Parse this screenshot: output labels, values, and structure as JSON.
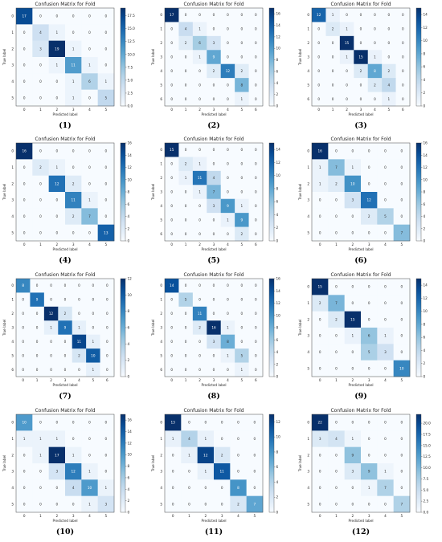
{
  "colors": {
    "low": "#f7fbff",
    "high": "#08306b"
  },
  "chart_data": [
    {
      "type": "heatmap",
      "caption": "(1)",
      "title": "Confusion Matrix for Fold",
      "xlabel": "Predicted label",
      "ylabel": "True label",
      "labels": [
        "0",
        "1",
        "2",
        "3",
        "4",
        "5"
      ],
      "matrix": [
        [
          17,
          0,
          0,
          0,
          0,
          0
        ],
        [
          0,
          4,
          1,
          0,
          0,
          0
        ],
        [
          0,
          3,
          19,
          1,
          0,
          0
        ],
        [
          0,
          0,
          1,
          11,
          1,
          0
        ],
        [
          0,
          0,
          0,
          1,
          6,
          1
        ],
        [
          0,
          0,
          0,
          1,
          0,
          5
        ]
      ],
      "colorbar_ticks": [
        "0.0",
        "2.5",
        "5.0",
        "7.5",
        "10.0",
        "12.5",
        "15.0",
        "17.5"
      ],
      "vmax": 19
    },
    {
      "type": "heatmap",
      "caption": "(2)",
      "title": "Confusion Matrix for Fold",
      "xlabel": "Predicted label",
      "ylabel": "True label",
      "labels": [
        "0",
        "1",
        "2",
        "3",
        "4",
        "5",
        "6"
      ],
      "matrix": [
        [
          17,
          0,
          0,
          0,
          0,
          0,
          0
        ],
        [
          0,
          4,
          1,
          0,
          0,
          0,
          0
        ],
        [
          0,
          2,
          6,
          3,
          0,
          0,
          0
        ],
        [
          0,
          0,
          1,
          9,
          0,
          0,
          0
        ],
        [
          0,
          0,
          0,
          2,
          12,
          2,
          0
        ],
        [
          0,
          0,
          0,
          0,
          0,
          8,
          0
        ],
        [
          0,
          0,
          0,
          0,
          0,
          1,
          0
        ]
      ],
      "colorbar_ticks": [
        "0",
        "2",
        "4",
        "6",
        "8",
        "10",
        "12",
        "14",
        "16"
      ],
      "vmax": 17
    },
    {
      "type": "heatmap",
      "caption": "(3)",
      "title": "Confusion Matrix for Fold",
      "xlabel": "Predicted label",
      "ylabel": "True label",
      "labels": [
        "0",
        "1",
        "2",
        "3",
        "4",
        "5",
        "6"
      ],
      "matrix": [
        [
          12,
          1,
          0,
          0,
          0,
          0,
          0
        ],
        [
          0,
          2,
          1,
          0,
          0,
          0,
          0
        ],
        [
          0,
          0,
          15,
          0,
          0,
          0,
          0
        ],
        [
          0,
          0,
          1,
          15,
          1,
          0,
          0
        ],
        [
          0,
          0,
          0,
          2,
          8,
          2,
          0
        ],
        [
          0,
          0,
          0,
          0,
          2,
          4,
          0
        ],
        [
          0,
          0,
          0,
          0,
          0,
          1,
          0
        ]
      ],
      "colorbar_ticks": [
        "0",
        "2",
        "4",
        "6",
        "8",
        "10",
        "12",
        "14"
      ],
      "vmax": 15
    },
    {
      "type": "heatmap",
      "caption": "(4)",
      "title": "Confusion Matrix for Fold",
      "xlabel": "Predicted label",
      "ylabel": "True label",
      "labels": [
        "0",
        "1",
        "2",
        "3",
        "4",
        "5"
      ],
      "matrix": [
        [
          16,
          0,
          0,
          0,
          0,
          0
        ],
        [
          0,
          2,
          1,
          0,
          0,
          0
        ],
        [
          0,
          0,
          12,
          2,
          0,
          0
        ],
        [
          0,
          0,
          0,
          11,
          1,
          0
        ],
        [
          0,
          0,
          0,
          2,
          7,
          0
        ],
        [
          0,
          0,
          0,
          0,
          0,
          13
        ]
      ],
      "colorbar_ticks": [
        "0",
        "2",
        "4",
        "6",
        "8",
        "10",
        "12",
        "14",
        "16"
      ],
      "vmax": 16
    },
    {
      "type": "heatmap",
      "caption": "(5)",
      "title": "Confusion Matrix for Fold",
      "xlabel": "Predicted label",
      "ylabel": "True label",
      "labels": [
        "0",
        "1",
        "2",
        "3",
        "4",
        "5",
        "6"
      ],
      "matrix": [
        [
          15,
          0,
          0,
          0,
          0,
          0,
          0
        ],
        [
          0,
          2,
          1,
          0,
          0,
          0,
          0
        ],
        [
          0,
          1,
          11,
          4,
          0,
          0,
          0
        ],
        [
          0,
          0,
          1,
          7,
          0,
          0,
          0
        ],
        [
          0,
          0,
          0,
          3,
          9,
          1,
          0
        ],
        [
          0,
          0,
          0,
          0,
          1,
          9,
          0
        ],
        [
          0,
          0,
          0,
          0,
          0,
          2,
          0
        ]
      ],
      "colorbar_ticks": [
        "0",
        "2",
        "4",
        "6",
        "8",
        "10",
        "12",
        "14"
      ],
      "vmax": 15
    },
    {
      "type": "heatmap",
      "caption": "(6)",
      "title": "Confusion Matrix for Fold",
      "xlabel": "Predicted label",
      "ylabel": "True label",
      "labels": [
        "0",
        "1",
        "2",
        "3",
        "4",
        "5"
      ],
      "matrix": [
        [
          16,
          0,
          0,
          0,
          0,
          0
        ],
        [
          1,
          7,
          1,
          0,
          0,
          0
        ],
        [
          1,
          2,
          10,
          0,
          0,
          0
        ],
        [
          0,
          0,
          3,
          12,
          0,
          0
        ],
        [
          0,
          0,
          0,
          2,
          5,
          0
        ],
        [
          0,
          0,
          0,
          0,
          0,
          7
        ]
      ],
      "colorbar_ticks": [
        "0",
        "2",
        "4",
        "6",
        "8",
        "10",
        "12",
        "14",
        "16"
      ],
      "vmax": 16
    },
    {
      "type": "heatmap",
      "caption": "(7)",
      "title": "Confusion Matrix for Fold",
      "xlabel": "Predicted label",
      "ylabel": "True label",
      "labels": [
        "0",
        "1",
        "2",
        "3",
        "4",
        "5",
        "6"
      ],
      "matrix": [
        [
          8,
          0,
          0,
          0,
          0,
          0,
          0
        ],
        [
          0,
          9,
          0,
          0,
          0,
          0,
          0
        ],
        [
          0,
          0,
          12,
          2,
          0,
          0,
          0
        ],
        [
          0,
          0,
          1,
          9,
          1,
          0,
          0
        ],
        [
          0,
          0,
          0,
          0,
          11,
          1,
          0
        ],
        [
          0,
          0,
          0,
          0,
          2,
          10,
          0
        ],
        [
          0,
          0,
          0,
          0,
          0,
          1,
          0
        ]
      ],
      "colorbar_ticks": [
        "0",
        "2",
        "4",
        "6",
        "8",
        "10",
        "12"
      ],
      "vmax": 12
    },
    {
      "type": "heatmap",
      "caption": "(8)",
      "title": "Confusion Matrix for Fold",
      "xlabel": "Predicted label",
      "ylabel": "True label",
      "labels": [
        "0",
        "1",
        "2",
        "3",
        "4",
        "5",
        "6"
      ],
      "matrix": [
        [
          14,
          0,
          0,
          0,
          0,
          0,
          0
        ],
        [
          0,
          5,
          0,
          0,
          0,
          0,
          0
        ],
        [
          0,
          0,
          11,
          0,
          0,
          0,
          0
        ],
        [
          0,
          0,
          2,
          16,
          1,
          0,
          0
        ],
        [
          0,
          0,
          0,
          3,
          8,
          0,
          0
        ],
        [
          0,
          0,
          0,
          0,
          1,
          5,
          0
        ],
        [
          0,
          0,
          0,
          0,
          0,
          1,
          0
        ]
      ],
      "colorbar_ticks": [
        "0",
        "2",
        "4",
        "6",
        "8",
        "10",
        "12",
        "14",
        "16"
      ],
      "vmax": 16
    },
    {
      "type": "heatmap",
      "caption": "(9)",
      "title": "Confusion Matrix for Fold",
      "xlabel": "Predicted label",
      "ylabel": "True label",
      "labels": [
        "0",
        "1",
        "2",
        "3",
        "4",
        "5"
      ],
      "matrix": [
        [
          15,
          0,
          0,
          0,
          0,
          0
        ],
        [
          2,
          7,
          0,
          0,
          0,
          0
        ],
        [
          0,
          2,
          15,
          0,
          0,
          0
        ],
        [
          0,
          0,
          1,
          6,
          1,
          0
        ],
        [
          0,
          0,
          0,
          5,
          3,
          0
        ],
        [
          0,
          0,
          0,
          0,
          0,
          10
        ]
      ],
      "colorbar_ticks": [
        "0",
        "2",
        "4",
        "6",
        "8",
        "10",
        "12",
        "14"
      ],
      "vmax": 15
    },
    {
      "type": "heatmap",
      "caption": "(10)",
      "title": "Confusion Matrix for Fold",
      "xlabel": "Predicted label",
      "ylabel": "True label",
      "labels": [
        "0",
        "1",
        "2",
        "3",
        "4",
        "5"
      ],
      "matrix": [
        [
          10,
          0,
          0,
          0,
          0,
          0
        ],
        [
          1,
          1,
          1,
          0,
          0,
          0
        ],
        [
          0,
          1,
          17,
          1,
          0,
          0
        ],
        [
          0,
          0,
          3,
          12,
          1,
          0
        ],
        [
          0,
          0,
          0,
          4,
          10,
          1
        ],
        [
          0,
          0,
          0,
          0,
          1,
          3
        ]
      ],
      "colorbar_ticks": [
        "0",
        "2",
        "4",
        "6",
        "8",
        "10",
        "12",
        "14",
        "16"
      ],
      "vmax": 17
    },
    {
      "type": "heatmap",
      "caption": "(11)",
      "title": "Confusion Matrix for Fold",
      "xlabel": "Predicted label",
      "ylabel": "True label",
      "labels": [
        "0",
        "1",
        "2",
        "3",
        "4",
        "5"
      ],
      "matrix": [
        [
          13,
          0,
          0,
          0,
          0,
          0
        ],
        [
          1,
          4,
          1,
          0,
          0,
          0
        ],
        [
          0,
          1,
          12,
          2,
          0,
          0
        ],
        [
          0,
          0,
          1,
          11,
          0,
          0
        ],
        [
          0,
          0,
          0,
          0,
          8,
          0
        ],
        [
          0,
          0,
          0,
          0,
          2,
          7
        ]
      ],
      "colorbar_ticks": [
        "0",
        "2",
        "4",
        "6",
        "8",
        "10",
        "12"
      ],
      "vmax": 13
    },
    {
      "type": "heatmap",
      "caption": "(12)",
      "title": "Confusion Matrix for Fold",
      "xlabel": "Predicted label",
      "ylabel": "True label",
      "labels": [
        "0",
        "1",
        "2",
        "3",
        "4",
        "5"
      ],
      "matrix": [
        [
          22,
          0,
          0,
          0,
          0,
          0
        ],
        [
          3,
          4,
          1,
          0,
          0,
          0
        ],
        [
          0,
          0,
          9,
          0,
          0,
          0
        ],
        [
          0,
          0,
          3,
          9,
          1,
          0
        ],
        [
          0,
          0,
          0,
          1,
          7,
          0
        ],
        [
          0,
          0,
          0,
          0,
          0,
          7
        ]
      ],
      "colorbar_ticks": [
        "0.0",
        "2.5",
        "5.0",
        "7.5",
        "10.0",
        "12.5",
        "15.0",
        "17.5",
        "20.0"
      ],
      "vmax": 22
    }
  ]
}
